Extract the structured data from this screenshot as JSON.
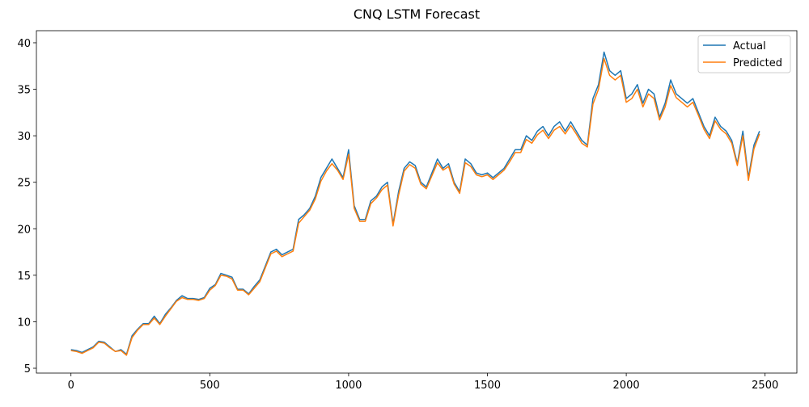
{
  "chart_data": {
    "type": "line",
    "title": "CNQ LSTM Forecast",
    "x": [
      0,
      20,
      40,
      60,
      80,
      100,
      120,
      140,
      160,
      180,
      200,
      220,
      240,
      260,
      280,
      300,
      320,
      340,
      360,
      380,
      400,
      420,
      440,
      460,
      480,
      500,
      520,
      540,
      560,
      580,
      600,
      620,
      640,
      660,
      680,
      700,
      720,
      740,
      760,
      780,
      800,
      820,
      840,
      860,
      880,
      900,
      920,
      940,
      960,
      980,
      1000,
      1020,
      1040,
      1060,
      1080,
      1100,
      1120,
      1140,
      1160,
      1180,
      1200,
      1220,
      1240,
      1260,
      1280,
      1300,
      1320,
      1340,
      1360,
      1380,
      1400,
      1420,
      1440,
      1460,
      1480,
      1500,
      1520,
      1540,
      1560,
      1580,
      1600,
      1620,
      1640,
      1660,
      1680,
      1700,
      1720,
      1740,
      1760,
      1780,
      1800,
      1820,
      1840,
      1860,
      1880,
      1900,
      1920,
      1940,
      1960,
      1980,
      2000,
      2020,
      2040,
      2060,
      2080,
      2100,
      2120,
      2140,
      2160,
      2180,
      2200,
      2220,
      2240,
      2260,
      2280,
      2300,
      2320,
      2340,
      2360,
      2380,
      2400,
      2420,
      2440,
      2460,
      2480
    ],
    "series": [
      {
        "name": "Actual",
        "color": "#1f77b4",
        "values": [
          7.0,
          6.9,
          6.7,
          7.0,
          7.3,
          7.9,
          7.8,
          7.3,
          6.8,
          7.0,
          6.5,
          8.5,
          9.2,
          9.8,
          9.8,
          10.6,
          9.8,
          10.8,
          11.5,
          12.3,
          12.8,
          12.5,
          12.5,
          12.4,
          12.6,
          13.6,
          14.0,
          15.2,
          15.0,
          14.8,
          13.5,
          13.5,
          13.0,
          13.8,
          14.5,
          16.0,
          17.5,
          17.8,
          17.2,
          17.5,
          17.8,
          21.0,
          21.5,
          22.2,
          23.5,
          25.5,
          26.5,
          27.5,
          26.5,
          25.5,
          28.5,
          22.5,
          21.0,
          21.0,
          23.0,
          23.5,
          24.5,
          25.0,
          20.5,
          24.0,
          26.5,
          27.2,
          26.8,
          25.0,
          24.5,
          26.0,
          27.5,
          26.5,
          27.0,
          25.0,
          24.0,
          27.5,
          27.0,
          26.0,
          25.8,
          26.0,
          25.5,
          26.0,
          26.5,
          27.5,
          28.5,
          28.5,
          30.0,
          29.5,
          30.5,
          31.0,
          30.0,
          31.0,
          31.5,
          30.5,
          31.5,
          30.5,
          29.5,
          29.0,
          34.0,
          35.5,
          39.0,
          37.0,
          36.5,
          37.0,
          34.0,
          34.5,
          35.5,
          33.5,
          35.0,
          34.5,
          32.0,
          33.5,
          36.0,
          34.5,
          34.0,
          33.5,
          34.0,
          32.5,
          31.0,
          30.0,
          32.0,
          31.0,
          30.5,
          29.5,
          27.0,
          30.5,
          25.5,
          29.0,
          30.5
        ]
      },
      {
        "name": "Predicted",
        "color": "#ff7f0e",
        "values": [
          6.9,
          6.8,
          6.6,
          6.9,
          7.2,
          7.8,
          7.7,
          7.2,
          6.8,
          6.9,
          6.4,
          8.3,
          9.1,
          9.7,
          9.7,
          10.4,
          9.7,
          10.6,
          11.4,
          12.2,
          12.6,
          12.4,
          12.4,
          12.3,
          12.5,
          13.4,
          13.9,
          15.0,
          14.9,
          14.6,
          13.4,
          13.4,
          12.9,
          13.6,
          14.3,
          15.8,
          17.3,
          17.6,
          17.0,
          17.3,
          17.6,
          20.6,
          21.3,
          22.0,
          23.2,
          25.1,
          26.2,
          27.0,
          26.3,
          25.3,
          28.0,
          22.2,
          20.8,
          20.8,
          22.7,
          23.3,
          24.2,
          24.7,
          20.3,
          23.6,
          26.2,
          26.9,
          26.5,
          24.8,
          24.3,
          25.7,
          27.1,
          26.3,
          26.7,
          24.8,
          23.8,
          27.1,
          26.7,
          25.8,
          25.6,
          25.8,
          25.3,
          25.8,
          26.3,
          27.2,
          28.2,
          28.2,
          29.6,
          29.2,
          30.1,
          30.6,
          29.7,
          30.6,
          31.0,
          30.2,
          31.1,
          30.2,
          29.2,
          28.8,
          33.4,
          35.0,
          38.3,
          36.5,
          36.0,
          36.5,
          33.6,
          34.0,
          35.0,
          33.1,
          34.5,
          34.0,
          31.7,
          33.1,
          35.4,
          34.1,
          33.6,
          33.1,
          33.6,
          32.2,
          30.7,
          29.7,
          31.6,
          30.7,
          30.2,
          29.2,
          26.8,
          30.0,
          25.2,
          28.6,
          30.2
        ]
      }
    ],
    "xlim": [
      -124.5,
      2614.5
    ],
    "ylim": [
      4.48,
      41.3
    ],
    "xticks": [
      0,
      500,
      1000,
      1500,
      2000,
      2500
    ],
    "yticks": [
      5,
      10,
      15,
      20,
      25,
      30,
      35,
      40
    ],
    "legend": "upper right"
  }
}
